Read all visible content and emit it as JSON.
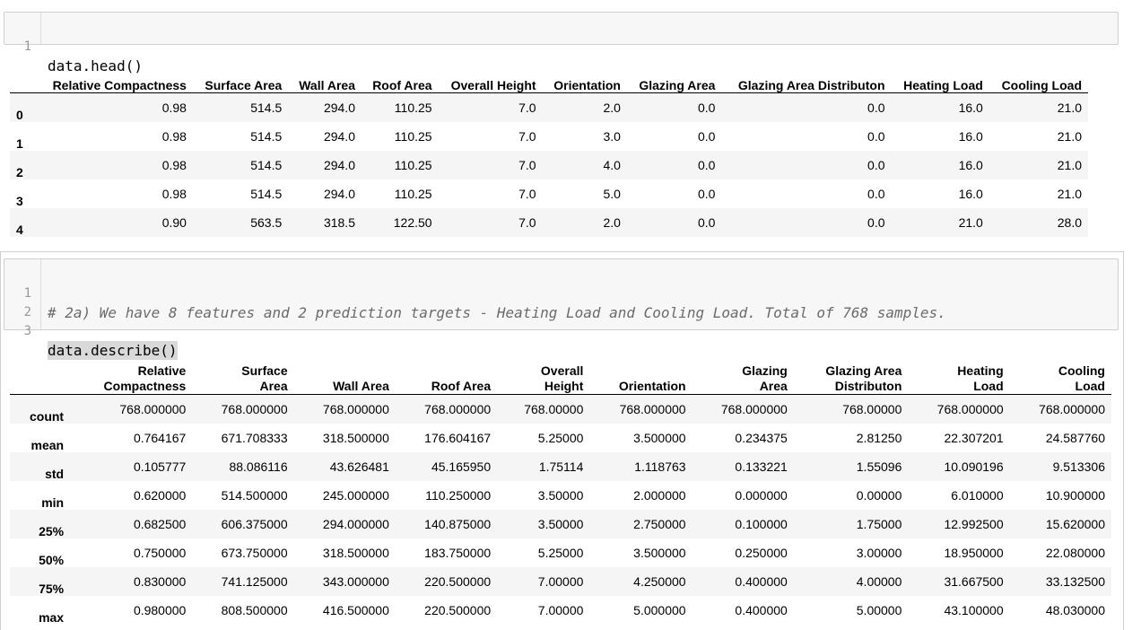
{
  "cell1": {
    "line_numbers": [
      "1"
    ],
    "code": "data.head()"
  },
  "head_table": {
    "columns": [
      "",
      "Relative Compactness",
      "Surface Area",
      "Wall Area",
      "Roof Area",
      "Overall Height",
      "Orientation",
      "Glazing Area",
      "Glazing Area Distributon",
      "Heating Load",
      "Cooling Load"
    ],
    "rows": [
      [
        "0",
        "0.98",
        "514.5",
        "294.0",
        "110.25",
        "7.0",
        "2.0",
        "0.0",
        "0.0",
        "16.0",
        "21.0"
      ],
      [
        "1",
        "0.98",
        "514.5",
        "294.0",
        "110.25",
        "7.0",
        "3.0",
        "0.0",
        "0.0",
        "16.0",
        "21.0"
      ],
      [
        "2",
        "0.98",
        "514.5",
        "294.0",
        "110.25",
        "7.0",
        "4.0",
        "0.0",
        "0.0",
        "16.0",
        "21.0"
      ],
      [
        "3",
        "0.98",
        "514.5",
        "294.0",
        "110.25",
        "7.0",
        "5.0",
        "0.0",
        "0.0",
        "16.0",
        "21.0"
      ],
      [
        "4",
        "0.90",
        "563.5",
        "318.5",
        "122.50",
        "7.0",
        "2.0",
        "0.0",
        "0.0",
        "21.0",
        "28.0"
      ]
    ]
  },
  "cell2": {
    "line_numbers": [
      "1",
      "2",
      "3"
    ],
    "comment": "# 2a) We have 8 features and 2 prediction targets - Heating Load and Cooling Load. Total of 768 samples.",
    "code": "data.describe()"
  },
  "describe_table": {
    "columns": [
      [
        "",
        ""
      ],
      [
        "Relative",
        "Compactness"
      ],
      [
        "Surface",
        "Area"
      ],
      [
        "Wall Area"
      ],
      [
        "Roof Area"
      ],
      [
        "Overall",
        "Height"
      ],
      [
        "Orientation"
      ],
      [
        "Glazing",
        "Area"
      ],
      [
        "Glazing Area",
        "Distributon"
      ],
      [
        "Heating",
        "Load"
      ],
      [
        "Cooling",
        "Load"
      ]
    ],
    "rows": [
      [
        "count",
        "768.000000",
        "768.000000",
        "768.000000",
        "768.000000",
        "768.00000",
        "768.000000",
        "768.000000",
        "768.00000",
        "768.000000",
        "768.000000"
      ],
      [
        "mean",
        "0.764167",
        "671.708333",
        "318.500000",
        "176.604167",
        "5.25000",
        "3.500000",
        "0.234375",
        "2.81250",
        "22.307201",
        "24.587760"
      ],
      [
        "std",
        "0.105777",
        "88.086116",
        "43.626481",
        "45.165950",
        "1.75114",
        "1.118763",
        "0.133221",
        "1.55096",
        "10.090196",
        "9.513306"
      ],
      [
        "min",
        "0.620000",
        "514.500000",
        "245.000000",
        "110.250000",
        "3.50000",
        "2.000000",
        "0.000000",
        "0.00000",
        "6.010000",
        "10.900000"
      ],
      [
        "25%",
        "0.682500",
        "606.375000",
        "294.000000",
        "140.875000",
        "3.50000",
        "2.750000",
        "0.100000",
        "1.75000",
        "12.992500",
        "15.620000"
      ],
      [
        "50%",
        "0.750000",
        "673.750000",
        "318.500000",
        "183.750000",
        "5.25000",
        "3.500000",
        "0.250000",
        "3.00000",
        "18.950000",
        "22.080000"
      ],
      [
        "75%",
        "0.830000",
        "741.125000",
        "343.000000",
        "220.500000",
        "7.00000",
        "4.250000",
        "0.400000",
        "4.00000",
        "31.667500",
        "33.132500"
      ],
      [
        "max",
        "0.980000",
        "808.500000",
        "416.500000",
        "220.500000",
        "7.00000",
        "5.000000",
        "0.400000",
        "5.00000",
        "43.100000",
        "48.030000"
      ]
    ]
  }
}
